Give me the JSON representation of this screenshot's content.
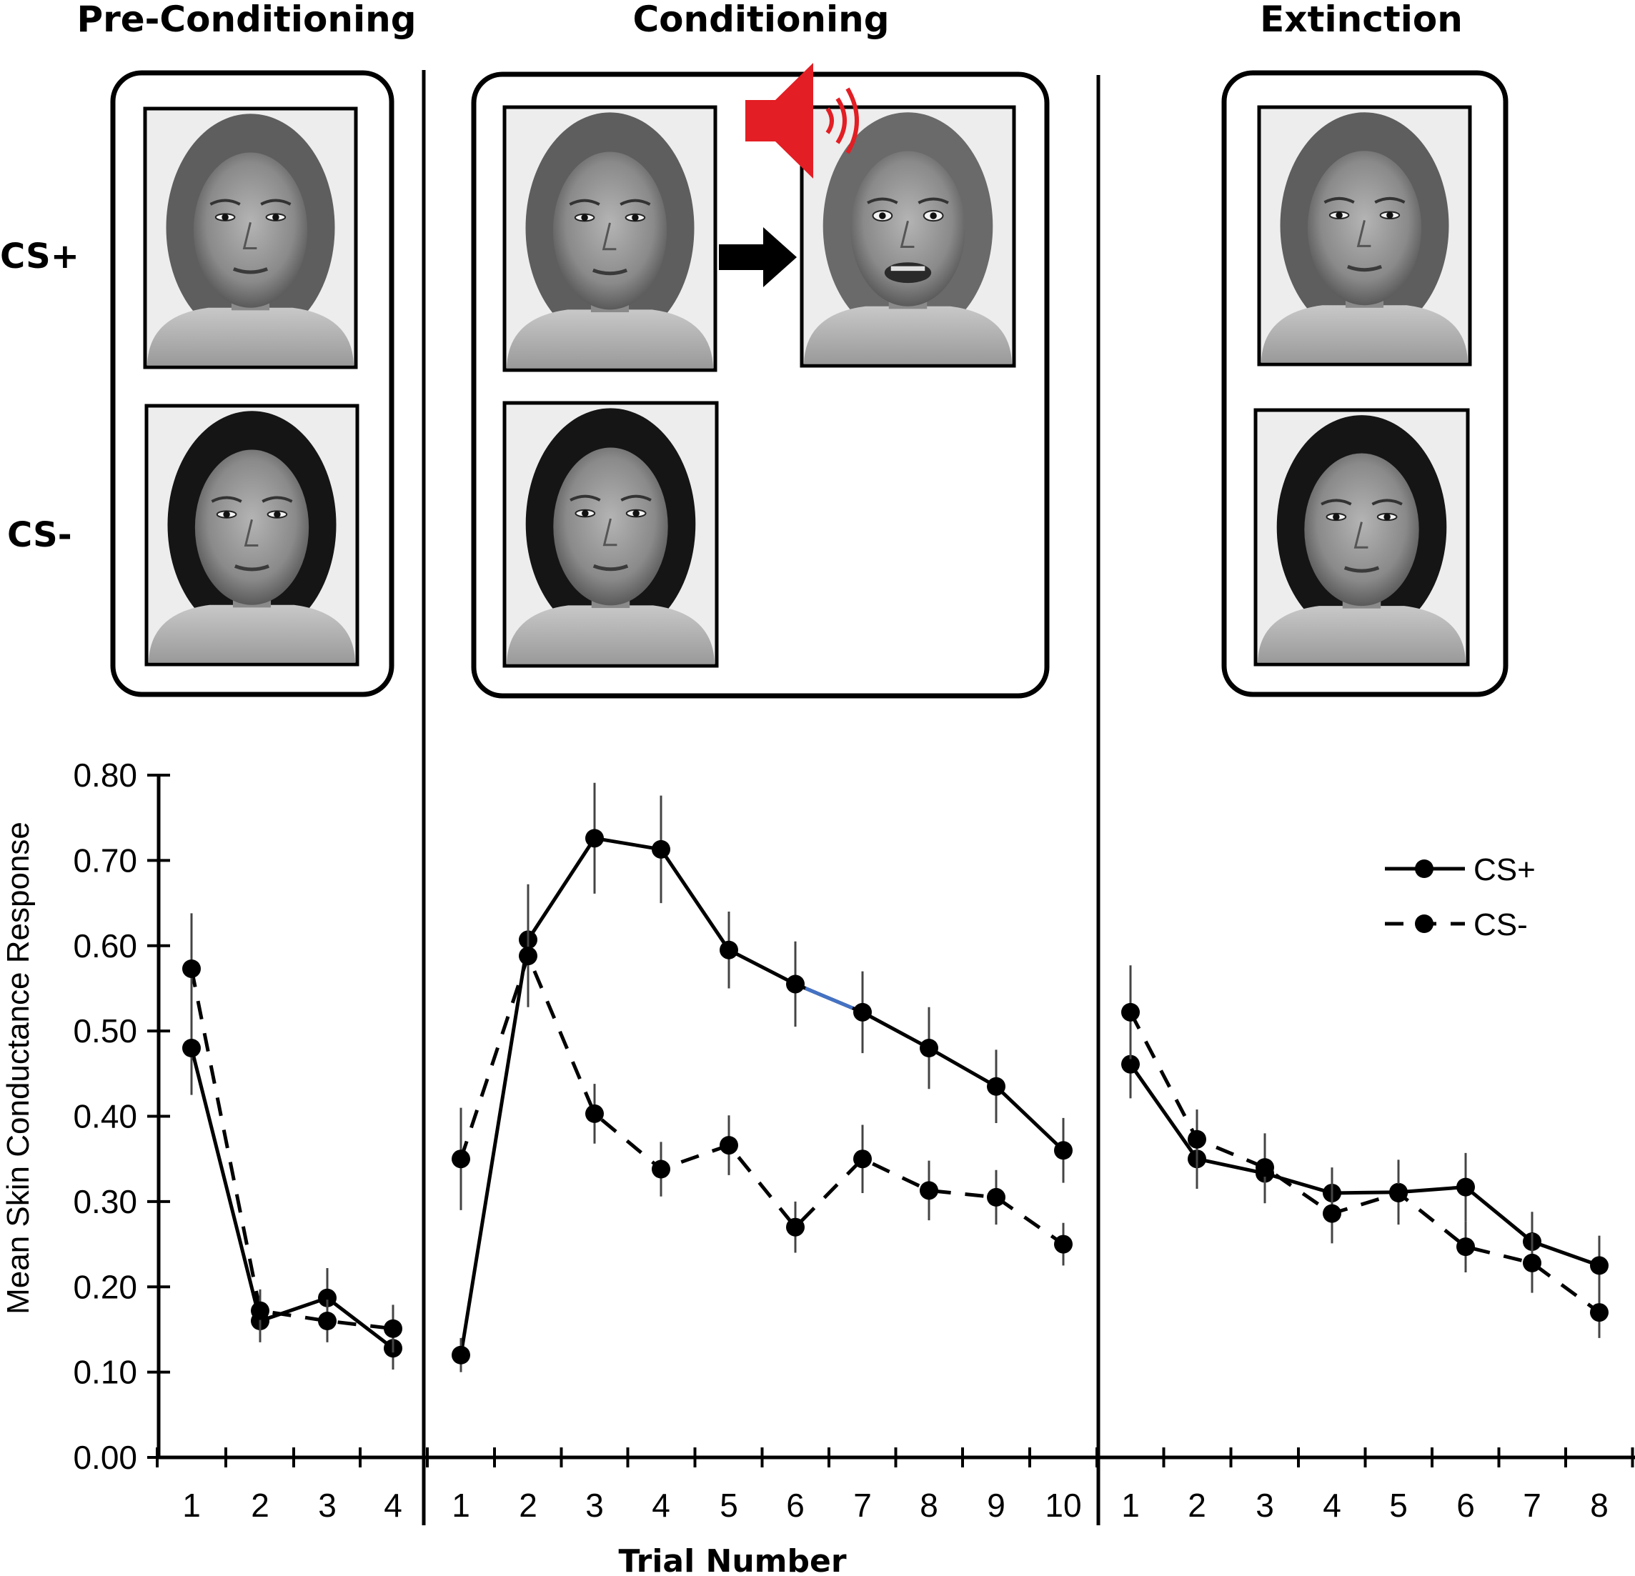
{
  "panels": [
    {
      "title": "Pre-Conditioning"
    },
    {
      "title": "Conditioning"
    },
    {
      "title": "Extinction"
    }
  ],
  "row_labels": {
    "cs_plus": "CS+",
    "cs_minus": "CS-"
  },
  "icons": {
    "sound": "speaker-icon",
    "arrow": "right-arrow-icon"
  },
  "colors": {
    "speaker": "#e31e24",
    "highlight_segment": "#4472c4"
  },
  "chart_data": {
    "type": "line",
    "ylabel": "Mean Skin Conductance Response",
    "xlabel": "Trial Number",
    "ylim": [
      0,
      0.8
    ],
    "yticks": [
      "0.00",
      "0.10",
      "0.20",
      "0.30",
      "0.40",
      "0.50",
      "0.60",
      "0.70",
      "0.80"
    ],
    "legend": {
      "position": "top-right",
      "entries": [
        "CS+",
        "CS-"
      ]
    },
    "phases": [
      {
        "name": "Pre-Conditioning",
        "x": [
          "1",
          "2",
          "3",
          "4"
        ],
        "series": [
          {
            "name": "CS+",
            "values": [
              0.48,
              0.16,
              0.187,
              0.128
            ],
            "errors": [
              0.055,
              0.025,
              0.035,
              0.025
            ]
          },
          {
            "name": "CS-",
            "values": [
              0.573,
              0.172,
              0.16,
              0.151
            ],
            "errors": [
              0.065,
              0.025,
              0.025,
              0.028
            ]
          }
        ]
      },
      {
        "name": "Conditioning",
        "x": [
          "1",
          "2",
          "3",
          "4",
          "5",
          "6",
          "7",
          "8",
          "9",
          "10"
        ],
        "series": [
          {
            "name": "CS+",
            "values": [
              0.12,
              0.607,
              0.726,
              0.713,
              0.595,
              0.555,
              0.522,
              0.48,
              0.435,
              0.36
            ],
            "errors": [
              0.02,
              0.065,
              0.065,
              0.063,
              0.045,
              0.05,
              0.048,
              0.048,
              0.043,
              0.038
            ]
          },
          {
            "name": "CS-",
            "values": [
              0.35,
              0.588,
              0.403,
              0.338,
              0.366,
              0.27,
              0.35,
              0.313,
              0.305,
              0.25
            ],
            "errors": [
              0.06,
              0.06,
              0.035,
              0.032,
              0.035,
              0.03,
              0.04,
              0.035,
              0.032,
              0.025
            ]
          }
        ]
      },
      {
        "name": "Extinction",
        "x": [
          "1",
          "2",
          "3",
          "4",
          "5",
          "6",
          "7",
          "8"
        ],
        "series": [
          {
            "name": "CS+",
            "values": [
              0.461,
              0.35,
              0.333,
              0.31,
              0.311,
              0.317,
              0.253,
              0.225
            ],
            "errors": [
              0.04,
              0.035,
              0.035,
              0.03,
              0.038,
              0.04,
              0.035,
              0.035
            ]
          },
          {
            "name": "CS-",
            "values": [
              0.522,
              0.373,
              0.34,
              0.286,
              0.31,
              0.247,
              0.228,
              0.17
            ],
            "errors": [
              0.055,
              0.035,
              0.04,
              0.035,
              0.035,
              0.03,
              0.035,
              0.03
            ]
          }
        ]
      }
    ]
  }
}
